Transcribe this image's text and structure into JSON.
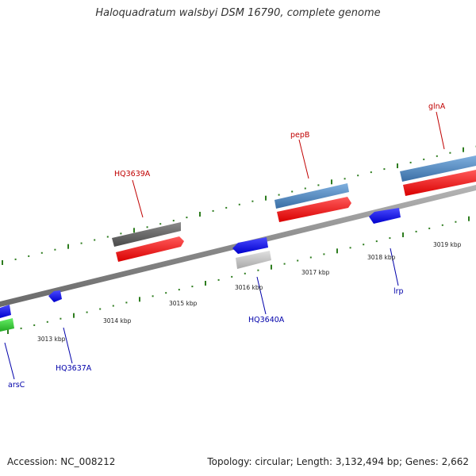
{
  "title": "Haloquadratum walsbyi DSM 16790, complete genome",
  "footer": {
    "accession": "Accession: NC_008212",
    "topology": "Topology: circular; Length: 3,132,494 bp; Genes: 2,662"
  },
  "colors": {
    "axis": "#8a8a8a",
    "tick": "#2e7d1f",
    "gene_label_red": "#c00000",
    "gene_label_blue": "#0000aa",
    "blue": "#1a1aff",
    "steelblue": "#4f87bd",
    "red": "#ff1a1a",
    "gray": "#6b6b6b",
    "lightgray": "#c8c8c8",
    "green": "#33cc33"
  },
  "kbp_labels": [
    {
      "text": "3013 kbp",
      "kbp": 3013
    },
    {
      "text": "3014 kbp",
      "kbp": 3014
    },
    {
      "text": "3015 kbp",
      "kbp": 3015
    },
    {
      "text": "3016 kbp",
      "kbp": 3016
    },
    {
      "text": "3017 kbp",
      "kbp": 3017
    },
    {
      "text": "3018 kbp",
      "kbp": 3018
    },
    {
      "text": "3019 kbp",
      "kbp": 3019
    }
  ],
  "gene_labels": [
    {
      "text": "HQ3639A",
      "color": "red"
    },
    {
      "text": "pepB",
      "color": "red"
    },
    {
      "text": "glnA",
      "color": "red"
    },
    {
      "text": "HQ3640A",
      "color": "blue"
    },
    {
      "text": "lrp",
      "color": "blue"
    },
    {
      "text": "HQ3637A",
      "color": "blue"
    },
    {
      "text": "arsC",
      "color": "blue"
    }
  ]
}
